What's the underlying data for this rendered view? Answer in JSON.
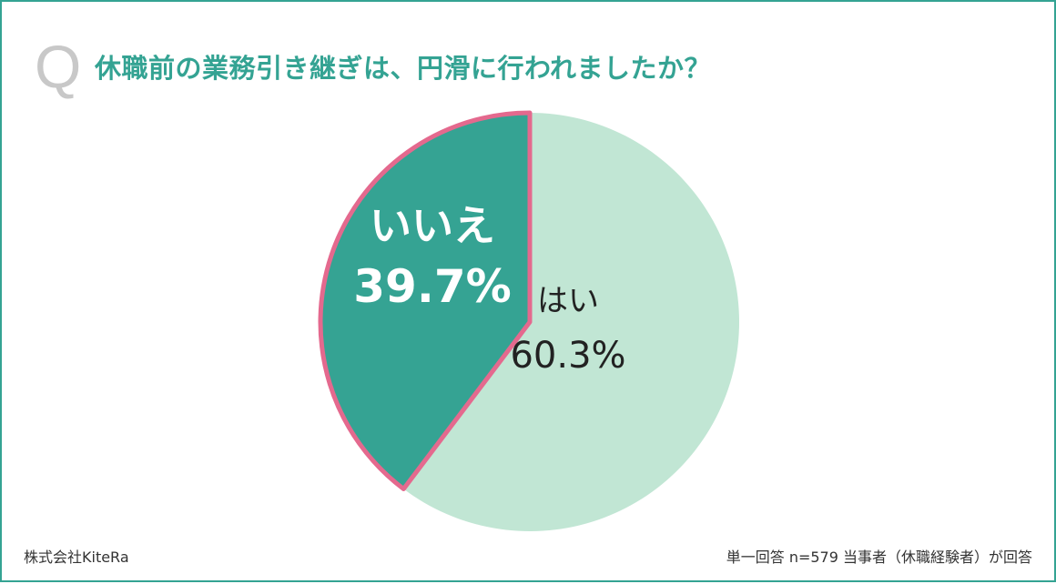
{
  "question_mark": "Q",
  "question": "休職前の業務引き継ぎは、円滑に行われましたか？",
  "company": "株式会社KiteRa",
  "footnote": "単一回答 n=579 当事者（休職経験者）が回答",
  "colors": {
    "frame": "#34a393",
    "title": "#34a393",
    "yes_fill": "#c1e6d4",
    "no_fill": "#35a393",
    "no_outline": "#e4698e",
    "yes_text": "#222222",
    "no_text": "#ffffff"
  },
  "chart_data": {
    "type": "pie",
    "start": "12 o'clock",
    "direction": "clockwise",
    "slices": [
      {
        "label": "はい",
        "value": 60.3,
        "value_label": "60.3%",
        "color": "#c1e6d4",
        "highlighted": false
      },
      {
        "label": "いいえ",
        "value": 39.7,
        "value_label": "39.7%",
        "color": "#35a393",
        "highlighted": true,
        "outline_color": "#e4698e"
      }
    ]
  }
}
